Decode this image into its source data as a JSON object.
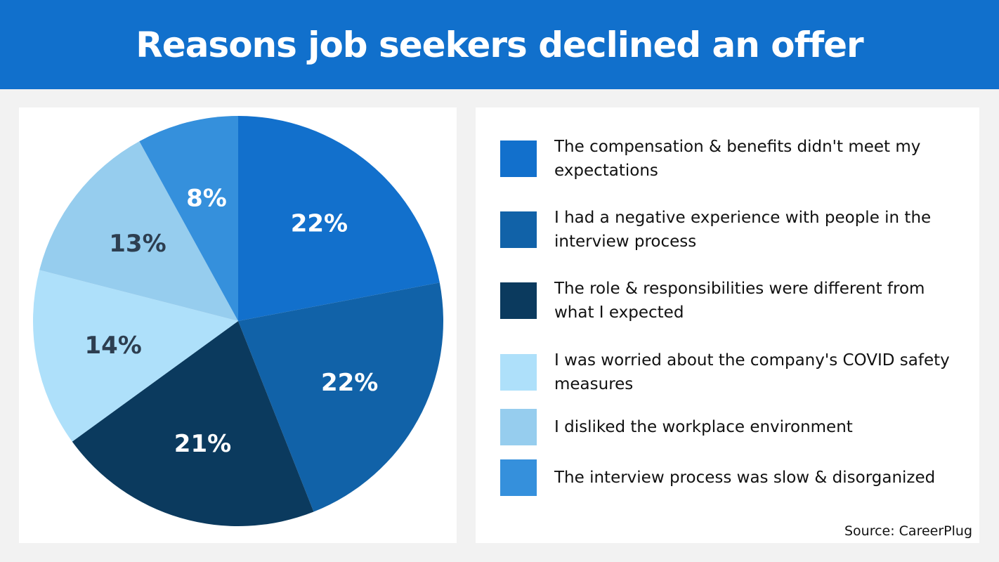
{
  "title": "Reasons job seekers declined an offer",
  "source": "Source: CareerPlug",
  "chart_data": {
    "type": "pie",
    "title": "Reasons job seekers declined an offer",
    "categories": [
      "The compensation & benefits didn't meet my expectations",
      "I had a negative experience with people in the interview process",
      "The role & responsibilities were different from what I expected",
      "I was worried about the company's COVID safety measures",
      "I disliked the workplace environment",
      "The interview process was slow & disorganized"
    ],
    "values": [
      22,
      22,
      21,
      14,
      13,
      8
    ],
    "labels": [
      "22%",
      "22%",
      "21%",
      "14%",
      "13%",
      "8%"
    ],
    "colors": [
      "#1270cc",
      "#1162a8",
      "#0b3a5e",
      "#aee0fa",
      "#96cdee",
      "#3590dc"
    ],
    "label_colors": [
      "#ffffff",
      "#ffffff",
      "#ffffff",
      "#2d3e50",
      "#2d3e50",
      "#ffffff"
    ],
    "legend": "right"
  }
}
